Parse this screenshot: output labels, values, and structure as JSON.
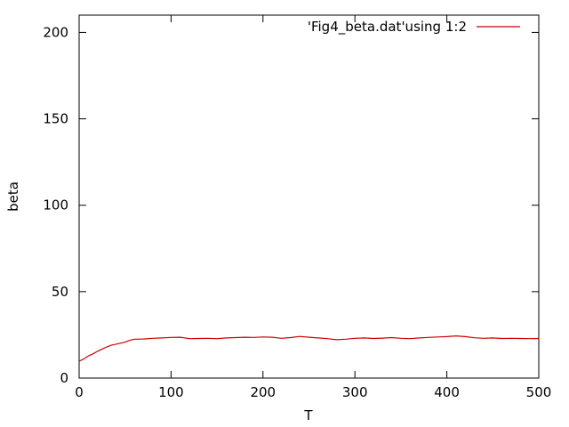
{
  "chart_data": {
    "type": "line",
    "xlabel": "T",
    "ylabel": "beta",
    "xlim": [
      0,
      500
    ],
    "ylim": [
      0,
      210
    ],
    "xticks": [
      0,
      100,
      200,
      300,
      400,
      500
    ],
    "yticks": [
      0,
      50,
      100,
      150,
      200
    ],
    "grid": false,
    "legend_position": "top-right",
    "series": [
      {
        "name": "'Fig4_beta.dat'using 1:2",
        "color": "#cc0000",
        "x": [
          0,
          5,
          10,
          15,
          20,
          25,
          30,
          35,
          40,
          45,
          50,
          55,
          60,
          70,
          80,
          90,
          100,
          110,
          120,
          130,
          140,
          150,
          160,
          170,
          180,
          190,
          200,
          210,
          220,
          230,
          240,
          250,
          260,
          270,
          280,
          290,
          300,
          310,
          320,
          330,
          340,
          350,
          360,
          370,
          380,
          390,
          400,
          410,
          420,
          430,
          440,
          450,
          460,
          470,
          480,
          490,
          500
        ],
        "y": [
          9.8,
          11,
          12.8,
          14,
          15.5,
          16.8,
          18,
          19,
          19.6,
          20.2,
          20.8,
          21.8,
          22.5,
          22.6,
          23,
          23.2,
          23.5,
          23.6,
          22.8,
          22.9,
          23,
          22.8,
          23.2,
          23.4,
          23.6,
          23.5,
          23.8,
          23.6,
          23,
          23.4,
          24.1,
          23.6,
          23.2,
          22.8,
          22.2,
          22.5,
          23,
          23.2,
          22.9,
          23.1,
          23.4,
          23,
          22.8,
          23.2,
          23.5,
          23.8,
          24,
          24.4,
          24,
          23.3,
          23,
          23.2,
          22.9,
          23,
          22.9,
          22.8,
          22.9
        ]
      }
    ]
  }
}
